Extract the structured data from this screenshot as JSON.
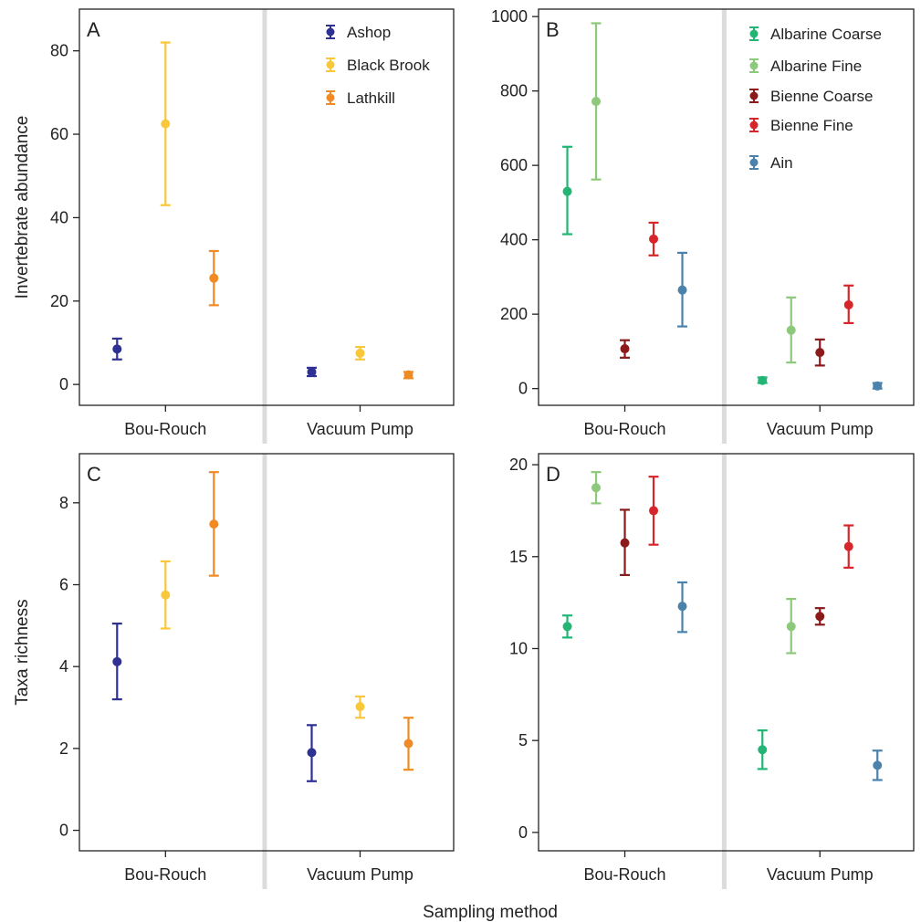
{
  "figure": {
    "xlabel": "Sampling method",
    "groups": [
      "Bou-Rouch",
      "Vacuum Pump"
    ]
  },
  "chart_data": [
    {
      "type": "scatter",
      "panel": "A",
      "ylabel": "Invertebrate abundance",
      "ylim": [
        -5,
        90
      ],
      "yticks": [
        0,
        20,
        40,
        60,
        80
      ],
      "categories": [
        "Bou-Rouch",
        "Vacuum Pump"
      ],
      "legend_position": "top-right",
      "series": [
        {
          "name": "Ashop",
          "color": "#2e3192",
          "values": [
            {
              "mean": 8.5,
              "low": 6,
              "high": 11
            },
            {
              "mean": 3,
              "low": 2,
              "high": 4
            }
          ]
        },
        {
          "name": "Black Brook",
          "color": "#f9c73a",
          "values": [
            {
              "mean": 62.5,
              "low": 43,
              "high": 82
            },
            {
              "mean": 7.5,
              "low": 6,
              "high": 9
            }
          ]
        },
        {
          "name": "Lathkill",
          "color": "#ef8a25",
          "values": [
            {
              "mean": 25.5,
              "low": 19,
              "high": 32
            },
            {
              "mean": 2.3,
              "low": 1.5,
              "high": 3
            }
          ]
        }
      ]
    },
    {
      "type": "scatter",
      "panel": "B",
      "ylabel": "",
      "ylim": [
        -45,
        1020
      ],
      "yticks": [
        0,
        200,
        400,
        600,
        800,
        1000
      ],
      "categories": [
        "Bou-Rouch",
        "Vacuum Pump"
      ],
      "legend_position": "top-right",
      "series": [
        {
          "name": "Albarine Coarse",
          "color": "#22b573",
          "values": [
            {
              "mean": 530,
              "low": 415,
              "high": 650
            },
            {
              "mean": 22,
              "low": 15,
              "high": 30
            }
          ]
        },
        {
          "name": "Albarine Fine",
          "color": "#8dc97a",
          "values": [
            {
              "mean": 772,
              "low": 562,
              "high": 982
            },
            {
              "mean": 157,
              "low": 70,
              "high": 245
            }
          ]
        },
        {
          "name": "Bienne Coarse",
          "color": "#8b1a1a",
          "values": [
            {
              "mean": 107,
              "low": 83,
              "high": 130
            },
            {
              "mean": 97,
              "low": 62,
              "high": 132
            }
          ]
        },
        {
          "name": "Bienne Fine",
          "color": "#d7262a",
          "values": [
            {
              "mean": 402,
              "low": 358,
              "high": 446
            },
            {
              "mean": 225,
              "low": 176,
              "high": 277
            }
          ]
        },
        {
          "name": "Ain",
          "color": "#4a82ac",
          "values": [
            {
              "mean": 265,
              "low": 167,
              "high": 365
            },
            {
              "mean": 7,
              "low": 0,
              "high": 15
            }
          ]
        }
      ]
    },
    {
      "type": "scatter",
      "panel": "C",
      "ylabel": "Taxa richness",
      "ylim": [
        -0.5,
        9.2
      ],
      "yticks": [
        0,
        2,
        4,
        6,
        8
      ],
      "categories": [
        "Bou-Rouch",
        "Vacuum Pump"
      ],
      "legend_position": "none",
      "series": [
        {
          "name": "Ashop",
          "color": "#2e3192",
          "values": [
            {
              "mean": 4.12,
              "low": 3.2,
              "high": 5.05
            },
            {
              "mean": 1.9,
              "low": 1.2,
              "high": 2.57
            }
          ]
        },
        {
          "name": "Black Brook",
          "color": "#f9c73a",
          "values": [
            {
              "mean": 5.75,
              "low": 4.93,
              "high": 6.57
            },
            {
              "mean": 3.02,
              "low": 2.75,
              "high": 3.27
            }
          ]
        },
        {
          "name": "Lathkill",
          "color": "#ef8a25",
          "values": [
            {
              "mean": 7.48,
              "low": 6.22,
              "high": 8.75
            },
            {
              "mean": 2.12,
              "low": 1.48,
              "high": 2.75
            }
          ]
        }
      ]
    },
    {
      "type": "scatter",
      "panel": "D",
      "ylabel": "",
      "ylim": [
        -1,
        20.6
      ],
      "yticks": [
        0,
        5,
        10,
        15,
        20
      ],
      "categories": [
        "Bou-Rouch",
        "Vacuum Pump"
      ],
      "legend_position": "none",
      "series": [
        {
          "name": "Albarine Coarse",
          "color": "#22b573",
          "values": [
            {
              "mean": 11.2,
              "low": 10.6,
              "high": 11.8
            },
            {
              "mean": 4.5,
              "low": 3.45,
              "high": 5.55
            }
          ]
        },
        {
          "name": "Albarine Fine",
          "color": "#8dc97a",
          "values": [
            {
              "mean": 18.75,
              "low": 17.9,
              "high": 19.6
            },
            {
              "mean": 11.2,
              "low": 9.75,
              "high": 12.7
            }
          ]
        },
        {
          "name": "Bienne Coarse",
          "color": "#8b1a1a",
          "values": [
            {
              "mean": 15.75,
              "low": 14,
              "high": 17.55
            },
            {
              "mean": 11.75,
              "low": 11.3,
              "high": 12.2
            }
          ]
        },
        {
          "name": "Bienne Fine",
          "color": "#d7262a",
          "values": [
            {
              "mean": 17.5,
              "low": 15.65,
              "high": 19.35
            },
            {
              "mean": 15.55,
              "low": 14.4,
              "high": 16.7
            }
          ]
        },
        {
          "name": "Ain",
          "color": "#4a82ac",
          "values": [
            {
              "mean": 12.3,
              "low": 10.9,
              "high": 13.6
            },
            {
              "mean": 3.65,
              "low": 2.85,
              "high": 4.45
            }
          ]
        }
      ]
    }
  ]
}
